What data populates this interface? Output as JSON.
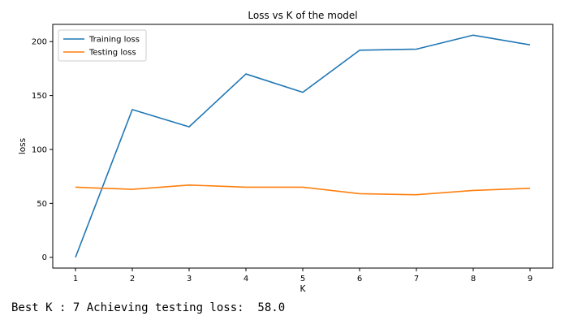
{
  "chart_data": {
    "type": "line",
    "title": "Loss vs K of the model",
    "xlabel": "K",
    "ylabel": "loss",
    "x": [
      1,
      2,
      3,
      4,
      5,
      6,
      7,
      8,
      9
    ],
    "xlim": [
      0.6,
      9.4
    ],
    "ylim": [
      -10,
      216
    ],
    "xticks": [
      "1",
      "2",
      "3",
      "4",
      "5",
      "6",
      "7",
      "8",
      "9"
    ],
    "yticks": [
      0,
      50,
      100,
      150,
      200
    ],
    "grid": false,
    "legend_position": "top-left",
    "series": [
      {
        "name": "Training loss",
        "color": "#1f77b4",
        "values": [
          0,
          137,
          121,
          170,
          153,
          192,
          193,
          206,
          197
        ]
      },
      {
        "name": "Testing loss",
        "color": "#ff7f0e",
        "values": [
          65,
          63,
          67,
          65,
          65,
          59,
          58,
          62,
          64
        ]
      }
    ]
  },
  "output": {
    "text": "Best K : 7 Achieving testing loss:  58.0"
  }
}
